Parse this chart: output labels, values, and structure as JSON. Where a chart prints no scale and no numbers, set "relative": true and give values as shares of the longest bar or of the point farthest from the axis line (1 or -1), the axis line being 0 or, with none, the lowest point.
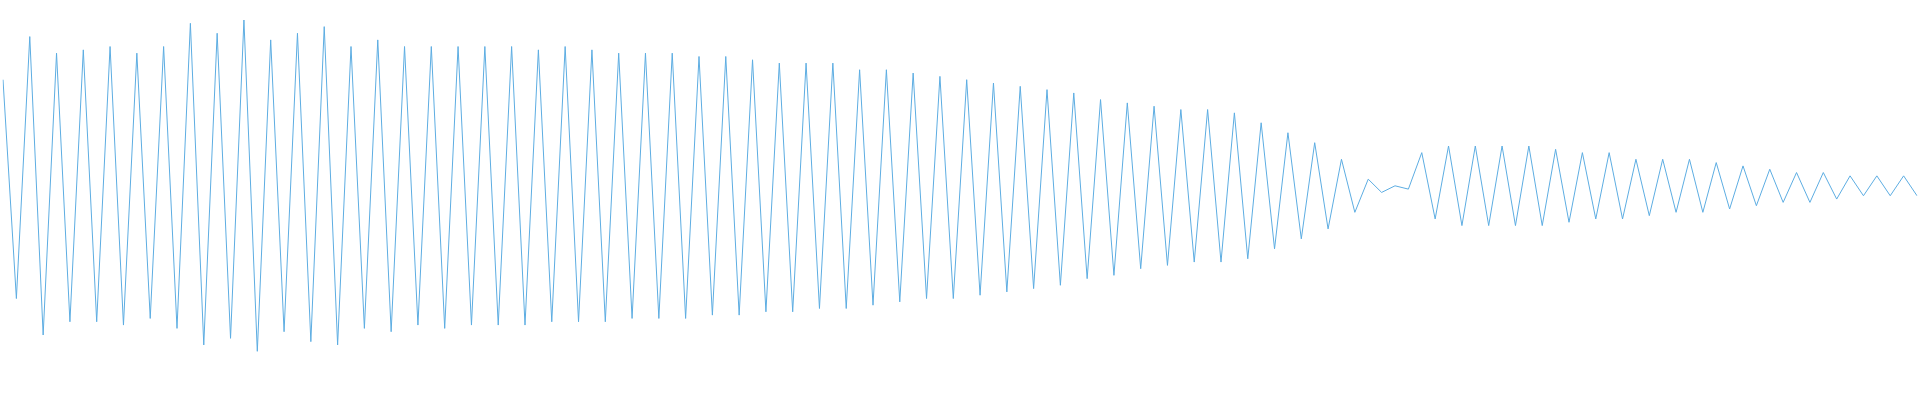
{
  "chart_data": {
    "type": "line",
    "relative": true,
    "marker": "none",
    "line_style": "solid",
    "categories": [
      null,
      null,
      null,
      null,
      null,
      null,
      null,
      null,
      null,
      null,
      null,
      null,
      null,
      null,
      null,
      null,
      null,
      null,
      null,
      null,
      null,
      null,
      null,
      null,
      null,
      null,
      null,
      null,
      null,
      null,
      null,
      null,
      null,
      null,
      null,
      null,
      null,
      null,
      null,
      null,
      null,
      null,
      null,
      null,
      null,
      null,
      null,
      null,
      null,
      null,
      null,
      null,
      null,
      null,
      null,
      null,
      null,
      null,
      null,
      null,
      null,
      null,
      null,
      null,
      null,
      null,
      null,
      null,
      null,
      null,
      null,
      null,
      null,
      null,
      null,
      null,
      null,
      null,
      null,
      null,
      null,
      null,
      null,
      null,
      null,
      null,
      null,
      null,
      null,
      null,
      null,
      null,
      null,
      null,
      null,
      null,
      null,
      null,
      null,
      null,
      null,
      null,
      null,
      null,
      null,
      null,
      null,
      null,
      null,
      null,
      null,
      null,
      null,
      null,
      null,
      null,
      null,
      null,
      null,
      null,
      null,
      null,
      null,
      null,
      null,
      null,
      null,
      null,
      null,
      null,
      null,
      null,
      null,
      null,
      null,
      null,
      null,
      null,
      null,
      null,
      null,
      null,
      null,
      null
    ],
    "series": [
      {
        "color": "#5dade2",
        "values": [
          0.82,
          0.16,
          0.95,
          0.05,
          0.9,
          0.09,
          0.91,
          0.09,
          0.92,
          0.08,
          0.9,
          0.1,
          0.92,
          0.07,
          0.99,
          0.02,
          0.96,
          0.04,
          1,
          0,
          0.94,
          0.06,
          0.96,
          0.03,
          0.98,
          0.02,
          0.92,
          0.07,
          0.94,
          0.06,
          0.92,
          0.08,
          0.92,
          0.07,
          0.92,
          0.08,
          0.92,
          0.08,
          0.92,
          0.08,
          0.91,
          0.09,
          0.92,
          0.09,
          0.91,
          0.09,
          0.9,
          0.1,
          0.9,
          0.1,
          0.9,
          0.1,
          0.89,
          0.11,
          0.89,
          0.11,
          0.88,
          0.12,
          0.87,
          0.12,
          0.87,
          0.13,
          0.87,
          0.13,
          0.85,
          0.14,
          0.85,
          0.15,
          0.84,
          0.16,
          0.83,
          0.16,
          0.82,
          0.17,
          0.81,
          0.18,
          0.8,
          0.19,
          0.79,
          0.2,
          0.78,
          0.22,
          0.76,
          0.23,
          0.75,
          0.25,
          0.74,
          0.26,
          0.73,
          0.27,
          0.73,
          0.27,
          0.72,
          0.28,
          0.69,
          0.31,
          0.66,
          0.34,
          0.63,
          0.37,
          0.58,
          0.42,
          0.52,
          0.48,
          0.5,
          0.49,
          0.6,
          0.4,
          0.62,
          0.38,
          0.62,
          0.38,
          0.62,
          0.38,
          0.62,
          0.38,
          0.61,
          0.39,
          0.6,
          0.4,
          0.6,
          0.4,
          0.58,
          0.41,
          0.58,
          0.42,
          0.58,
          0.42,
          0.57,
          0.43,
          0.56,
          0.44,
          0.55,
          0.45,
          0.54,
          0.45,
          0.54,
          0.46,
          0.53,
          0.47,
          0.53,
          0.47,
          0.53,
          0.47
        ]
      }
    ]
  }
}
